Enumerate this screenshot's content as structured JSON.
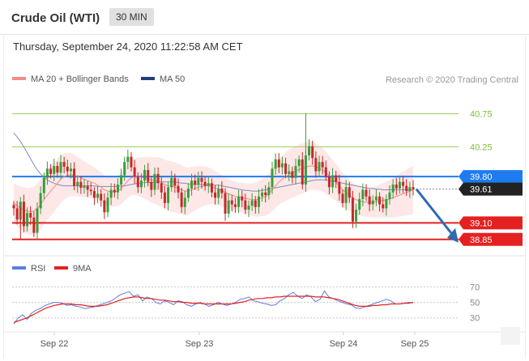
{
  "header": {
    "title": "Crude Oil (WTI)",
    "timeframe": "30 MIN",
    "datetime": "Thursday, September 24, 2020 11:22:58 AM CET"
  },
  "chart_data": [
    {
      "type": "line",
      "panel": "price",
      "legend": [
        {
          "name": "MA 20 + Bollinger Bands",
          "color": "#f28b8b"
        },
        {
          "name": "MA 50",
          "color": "#1f3f7a"
        }
      ],
      "legend_placement": "top-left",
      "credit": "Research © 2020 Trading Central",
      "x_ticks": [
        "Sep 22",
        "Sep 23",
        "Sep 24",
        "Sep 25"
      ],
      "ylim": [
        38.7,
        41.1
      ],
      "levels": [
        {
          "label": "40.75",
          "value": 40.75,
          "kind": "resistance",
          "color": "#9acd5a"
        },
        {
          "label": "40.25",
          "value": 40.25,
          "kind": "resistance",
          "color": "#9acd5a"
        },
        {
          "label": "39.80",
          "value": 39.8,
          "kind": "pivot",
          "color": "#1e7bf0"
        },
        {
          "label": "39.61",
          "value": 39.61,
          "kind": "last",
          "color": "#222222"
        },
        {
          "label": "39.10",
          "value": 39.1,
          "kind": "support",
          "color": "#e52020"
        },
        {
          "label": "38.85",
          "value": 38.85,
          "kind": "support",
          "color": "#e52020"
        }
      ],
      "candles_close": [
        39.32,
        39.15,
        39.42,
        39.05,
        39.25,
        39.18,
        38.95,
        39.32,
        39.55,
        39.78,
        39.92,
        39.84,
        39.96,
        39.86,
        40.02,
        39.95,
        39.88,
        39.92,
        39.66,
        39.72,
        39.63,
        39.66,
        39.6,
        39.58,
        39.48,
        39.54,
        39.44,
        39.26,
        39.48,
        39.6,
        39.56,
        39.68,
        39.82,
        40.02,
        40.1,
        39.94,
        39.8,
        39.64,
        39.74,
        39.9,
        39.72,
        39.6,
        39.84,
        39.7,
        39.56,
        39.4,
        39.64,
        39.78,
        39.66,
        39.56,
        39.34,
        39.48,
        39.62,
        39.74,
        39.68,
        39.78,
        39.72,
        39.66,
        39.7,
        39.56,
        39.48,
        39.62,
        39.55,
        39.24,
        39.44,
        39.38,
        39.34,
        39.5,
        39.44,
        39.3,
        39.36,
        39.44,
        39.34,
        39.5,
        39.56,
        39.52,
        39.64,
        39.92,
        40.06,
        39.94,
        40.0,
        39.84,
        39.88,
        39.78,
        39.96,
        40.06,
        39.68,
        40.12,
        40.26,
        40.08,
        39.88,
        40.02,
        39.94,
        39.8,
        39.64,
        39.82,
        39.72,
        39.54,
        39.4,
        39.64,
        39.48,
        39.12,
        39.3,
        39.46,
        39.6,
        39.5,
        39.38,
        39.44,
        39.5,
        39.38,
        39.32,
        39.46,
        39.56,
        39.68,
        39.62,
        39.72,
        39.66,
        39.58,
        39.64,
        39.61
      ],
      "ma20": [
        39.4,
        39.36,
        39.32,
        39.3,
        39.28,
        39.27,
        39.28,
        39.32,
        39.38,
        39.45,
        39.52,
        39.58,
        39.64,
        39.7,
        39.76,
        39.8,
        39.82,
        39.83,
        39.82,
        39.8,
        39.78,
        39.76,
        39.74,
        39.72,
        39.7,
        39.67,
        39.64,
        39.6,
        39.58,
        39.57,
        39.57,
        39.58,
        39.62,
        39.68,
        39.74,
        39.78,
        39.8,
        39.8,
        39.79,
        39.78,
        39.77,
        39.75,
        39.74,
        39.73,
        39.71,
        39.68,
        39.66,
        39.65,
        39.64,
        39.62,
        39.6,
        39.58,
        39.58,
        39.6,
        39.62,
        39.64,
        39.65,
        39.66,
        39.66,
        39.65,
        39.63,
        39.61,
        39.59,
        39.56,
        39.54,
        39.52,
        39.5,
        39.49,
        39.48,
        39.47,
        39.46,
        39.45,
        39.45,
        39.46,
        39.48,
        39.5,
        39.54,
        39.6,
        39.66,
        39.72,
        39.76,
        39.8,
        39.83,
        39.86,
        39.88,
        39.91,
        39.92,
        39.94,
        39.96,
        39.96,
        39.95,
        39.93,
        39.9,
        39.86,
        39.81,
        39.76,
        39.71,
        39.66,
        39.6,
        39.56,
        39.52,
        39.48,
        39.45,
        39.43,
        39.42,
        39.41,
        39.41,
        39.41,
        39.42,
        39.43,
        39.44,
        39.45,
        39.46,
        39.48,
        39.5,
        39.52,
        39.54,
        39.56,
        39.58,
        39.6
      ],
      "ma50": [
        40.46,
        40.4,
        40.33,
        40.25,
        40.16,
        40.07,
        39.98,
        39.9,
        39.84,
        39.79,
        39.75,
        39.72,
        39.7,
        39.68,
        39.67,
        39.66,
        39.66,
        39.66,
        39.66,
        39.66,
        39.66,
        39.66,
        39.66,
        39.66,
        39.66,
        39.65,
        39.65,
        39.65,
        39.65,
        39.65,
        39.65,
        39.65,
        39.66,
        39.66,
        39.67,
        39.68,
        39.69,
        39.7,
        39.7,
        39.71,
        39.71,
        39.71,
        39.71,
        39.72,
        39.72,
        39.72,
        39.72,
        39.72,
        39.72,
        39.71,
        39.7,
        39.7,
        39.69,
        39.69,
        39.68,
        39.68,
        39.68,
        39.68,
        39.68,
        39.68,
        39.67,
        39.67,
        39.66,
        39.65,
        39.64,
        39.63,
        39.62,
        39.61,
        39.6,
        39.59,
        39.59,
        39.58,
        39.58,
        39.58,
        39.59,
        39.6,
        39.61,
        39.62,
        39.63,
        39.64,
        39.65,
        39.66,
        39.67,
        39.68,
        39.69,
        39.7,
        39.71,
        39.72,
        39.73,
        39.74,
        39.75,
        39.75,
        39.75,
        39.75,
        39.74,
        39.73,
        39.72,
        39.71,
        39.7,
        39.69,
        39.68,
        39.67,
        39.66,
        39.65,
        39.64,
        39.63,
        39.62,
        39.62,
        39.61,
        39.61,
        39.6,
        39.6,
        39.6,
        39.6,
        39.6,
        39.6,
        39.6,
        39.6,
        39.6,
        39.6
      ],
      "projection": {
        "from": 39.61,
        "to": 38.85
      }
    },
    {
      "type": "line",
      "panel": "rsi",
      "legend": [
        {
          "name": "RSI",
          "color": "#5a7fdc"
        },
        {
          "name": "9MA",
          "color": "#e52020"
        }
      ],
      "legend_placement": "top-left",
      "levels": [
        "70",
        "50",
        "30"
      ],
      "ylim": [
        15,
        80
      ],
      "rsi": [
        22,
        30,
        34,
        28,
        36,
        40,
        42,
        46,
        48,
        50,
        50,
        49,
        46,
        47,
        45,
        44,
        42,
        43,
        44,
        46,
        48,
        50,
        52,
        56,
        60,
        62,
        64,
        58,
        60,
        52,
        57,
        55,
        50,
        48,
        52,
        50,
        47,
        52,
        51,
        47,
        45,
        48,
        50,
        48,
        45,
        47,
        50,
        48,
        46,
        48,
        50,
        54,
        55,
        57,
        52,
        51,
        49,
        48,
        46,
        47,
        52,
        55,
        60,
        63,
        58,
        55,
        60,
        57,
        51,
        54,
        65,
        57,
        55,
        52,
        50,
        48,
        47,
        43,
        42,
        44,
        46,
        48,
        50,
        52,
        54,
        52,
        48,
        48,
        49,
        50,
        50
      ],
      "ma9": [
        24,
        26,
        28,
        30,
        33,
        36,
        39,
        42,
        44,
        46,
        47,
        48,
        48,
        48,
        47,
        47,
        46,
        45,
        45,
        45,
        46,
        47,
        49,
        51,
        53,
        55,
        56,
        57,
        57,
        56,
        55,
        55,
        54,
        53,
        53,
        52,
        51,
        51,
        50,
        50,
        49,
        49,
        49,
        48,
        48,
        48,
        48,
        48,
        48,
        48,
        49,
        50,
        51,
        53,
        54,
        55,
        55,
        56,
        56,
        57,
        57,
        58,
        58,
        58,
        58,
        58,
        58,
        58,
        57,
        57,
        57,
        56,
        55,
        54,
        52,
        50,
        48,
        46,
        45,
        45,
        45,
        46,
        46,
        47,
        47,
        48,
        48,
        48,
        49,
        49,
        50
      ]
    }
  ]
}
